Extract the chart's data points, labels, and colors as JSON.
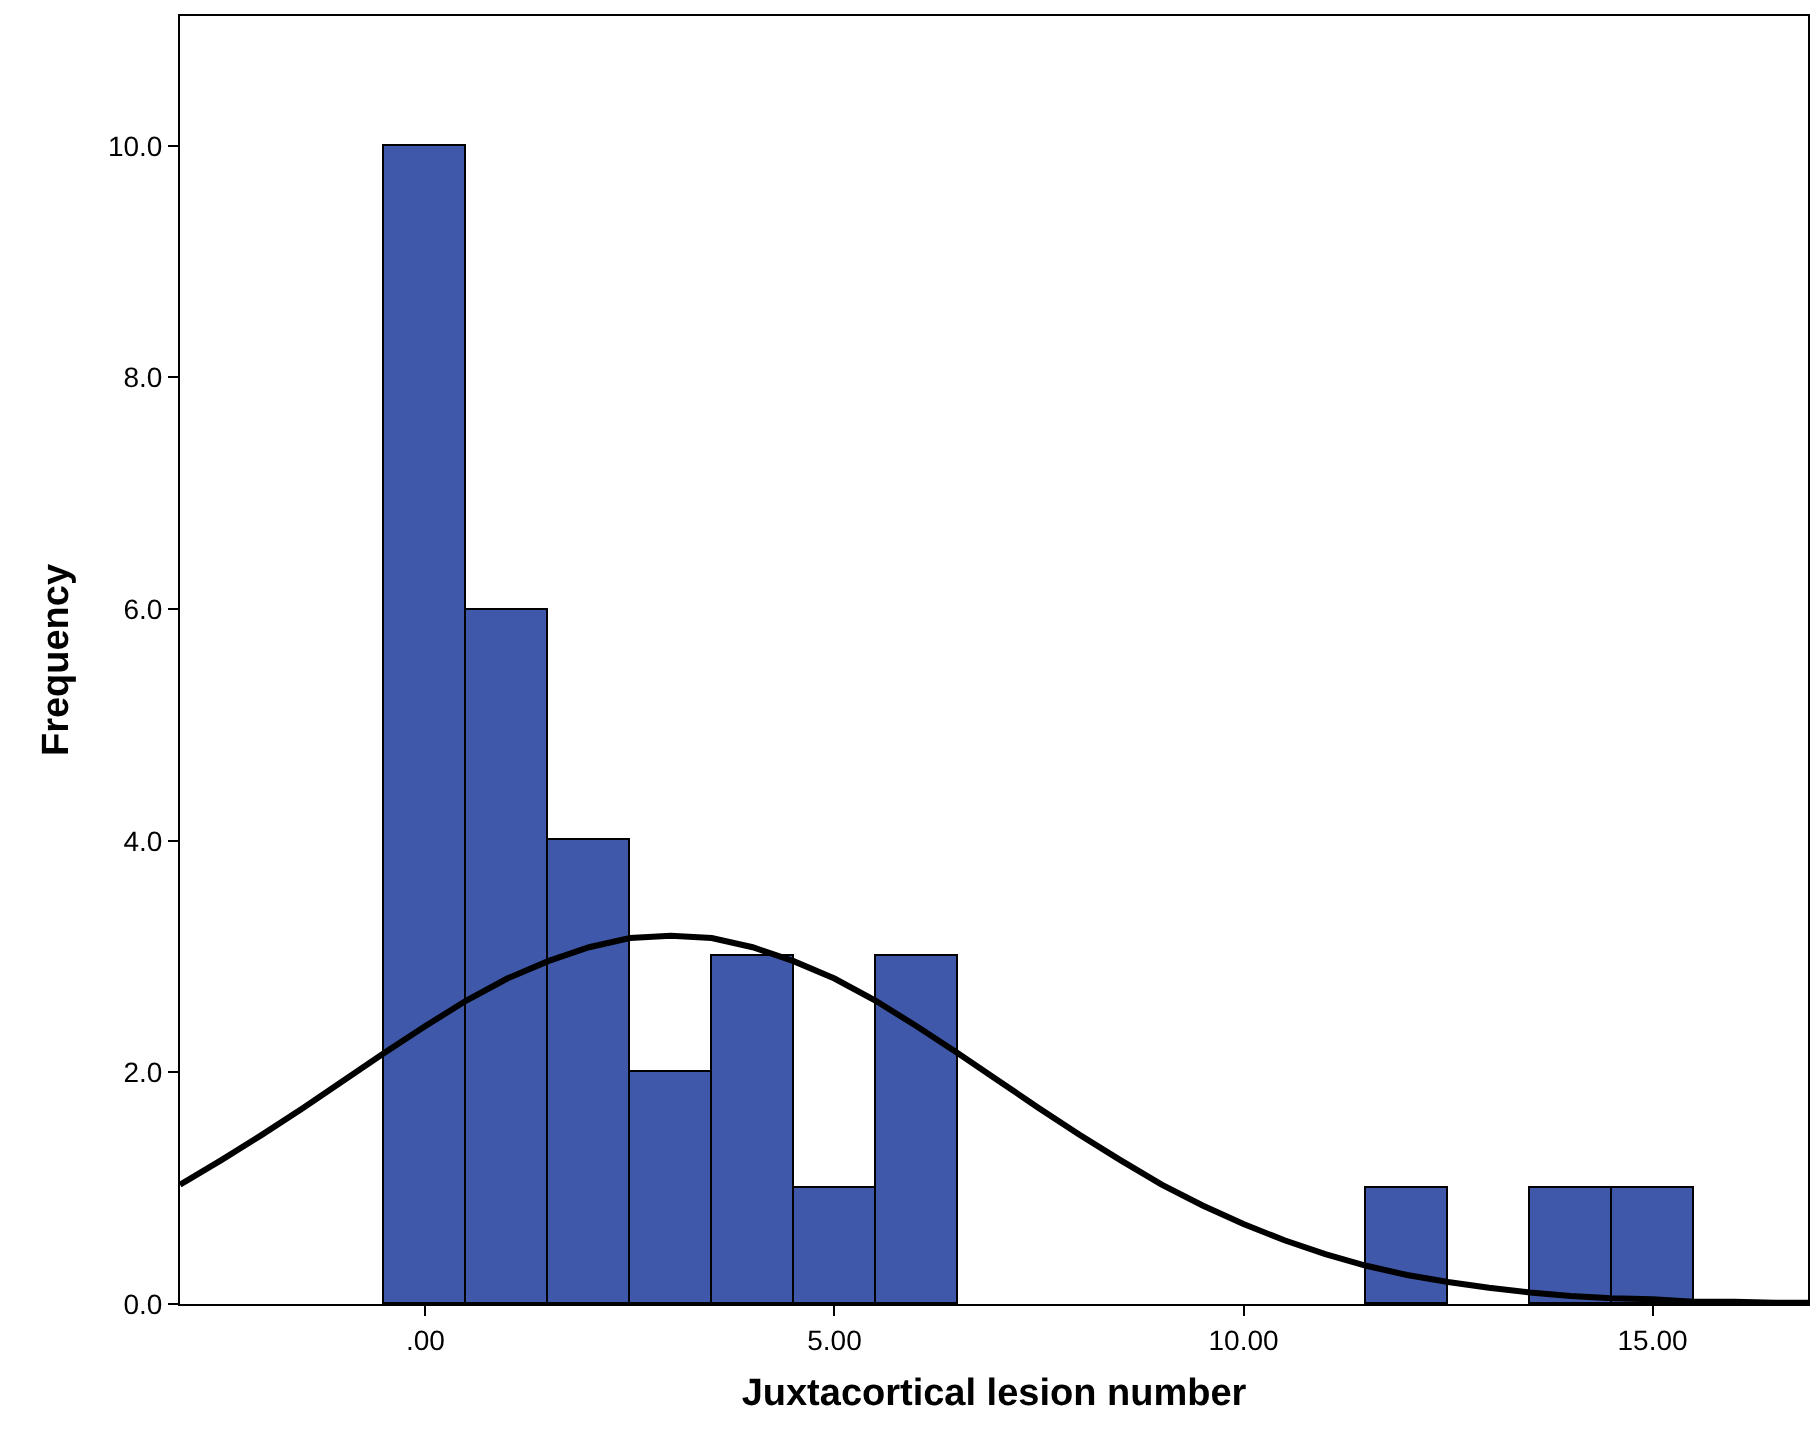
{
  "chart_data": {
    "type": "histogram",
    "xlabel": "Juxtacortical lesion number",
    "ylabel": "Frequency",
    "xlim": [
      -3,
      16.9
    ],
    "ylim": [
      0,
      11.12
    ],
    "xticks": [
      {
        "value": 0,
        "label": ".00"
      },
      {
        "value": 5,
        "label": "5.00"
      },
      {
        "value": 10,
        "label": "10.00"
      },
      {
        "value": 15,
        "label": "15.00"
      }
    ],
    "yticks": [
      {
        "value": 0,
        "label": "0.0"
      },
      {
        "value": 2,
        "label": "2.0"
      },
      {
        "value": 4,
        "label": "4.0"
      },
      {
        "value": 6,
        "label": "6.0"
      },
      {
        "value": 8,
        "label": "8.0"
      },
      {
        "value": 10,
        "label": "10.0"
      }
    ],
    "grid": false,
    "legend": false,
    "series": [
      {
        "color": "#3f58a9",
        "bins": [
          -0.5,
          0.5,
          1.5,
          2.5,
          3.5,
          4.5,
          5.5,
          6.5,
          7.5,
          8.5,
          9.5,
          10.5,
          11.5,
          12.5,
          13.5,
          14.5,
          15.5
        ],
        "values": [
          10,
          6,
          4,
          2,
          3,
          1,
          3,
          0,
          0,
          0,
          0,
          0,
          1,
          0,
          1,
          1
        ]
      },
      {
        "type": "line",
        "color": "#000000",
        "x": [
          -3,
          -2.5,
          -2,
          -1.5,
          -1,
          -0.5,
          0,
          0.5,
          1,
          1.5,
          2,
          2.5,
          3,
          3.5,
          4,
          4.5,
          5,
          5.5,
          6,
          6.5,
          7,
          7.5,
          8,
          8.5,
          9,
          9.5,
          10,
          10.5,
          11,
          11.5,
          12,
          12.5,
          13,
          13.5,
          14,
          14.5,
          15,
          15.5,
          16,
          16.5,
          16.9
        ],
        "values": [
          1.03,
          1.24,
          1.46,
          1.69,
          1.93,
          2.17,
          2.4,
          2.62,
          2.81,
          2.96,
          3.08,
          3.16,
          3.18,
          3.16,
          3.08,
          2.96,
          2.81,
          2.62,
          2.4,
          2.17,
          1.93,
          1.69,
          1.46,
          1.24,
          1.03,
          0.85,
          0.69,
          0.55,
          0.43,
          0.33,
          0.25,
          0.19,
          0.14,
          0.1,
          0.07,
          0.05,
          0.04,
          0.02,
          0.02,
          0.01,
          0.01
        ]
      }
    ]
  }
}
